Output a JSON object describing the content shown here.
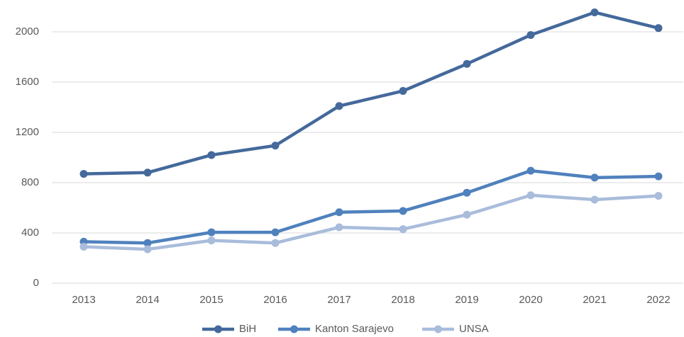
{
  "chart_data": {
    "type": "line",
    "categories": [
      "2013",
      "2014",
      "2015",
      "2016",
      "2017",
      "2018",
      "2019",
      "2020",
      "2021",
      "2022"
    ],
    "series": [
      {
        "name": "BiH",
        "color": "#44699b",
        "values": [
          870,
          880,
          1020,
          1095,
          1410,
          1530,
          1745,
          1975,
          2155,
          2030
        ]
      },
      {
        "name": "Kanton Sarajevo",
        "color": "#4f81bd",
        "values": [
          330,
          320,
          405,
          405,
          565,
          575,
          720,
          895,
          840,
          850
        ]
      },
      {
        "name": "UNSA",
        "color": "#a9bcdb",
        "values": [
          290,
          270,
          340,
          320,
          445,
          430,
          545,
          700,
          665,
          695
        ]
      }
    ],
    "ylim": [
      0,
      2200
    ],
    "yticks": [
      0,
      400,
      800,
      1200,
      1600,
      2000
    ],
    "grid": true,
    "legend": "bottom"
  }
}
